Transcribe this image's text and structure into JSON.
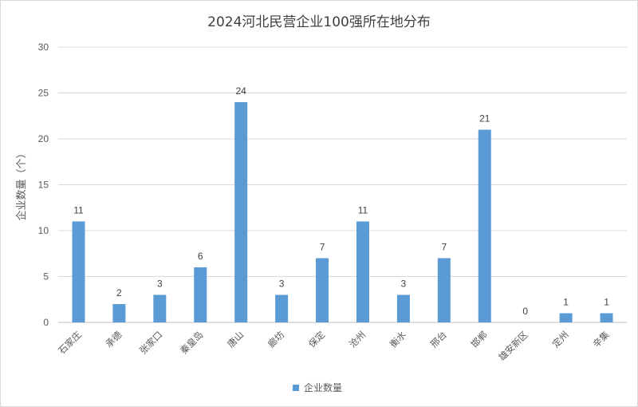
{
  "chart_data": {
    "type": "bar",
    "title": "2024河北民营企业100强所在地分布",
    "ylabel": "企业数量（个）",
    "xlabel": "",
    "ylim": [
      0,
      30
    ],
    "yticks": [
      0,
      5,
      10,
      15,
      20,
      25,
      30
    ],
    "grid": true,
    "legend_position": "bottom",
    "bar_color": "#5b9bd5",
    "categories": [
      "石家庄",
      "承德",
      "张家口",
      "秦皇岛",
      "唐山",
      "廊坊",
      "保定",
      "沧州",
      "衡水",
      "邢台",
      "邯郸",
      "雄安新区",
      "定州",
      "辛集"
    ],
    "series": [
      {
        "name": "企业数量",
        "values": [
          11,
          2,
          3,
          6,
          24,
          3,
          7,
          11,
          3,
          7,
          21,
          0,
          1,
          1
        ]
      }
    ]
  }
}
